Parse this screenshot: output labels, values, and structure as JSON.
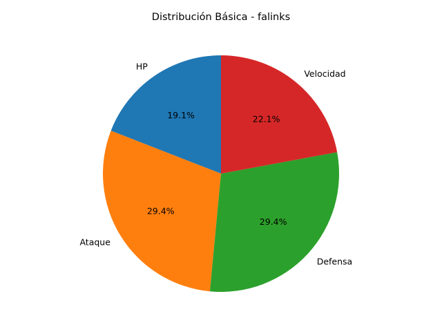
{
  "chart_data": {
    "type": "pie",
    "title": "Distribución Básica - falinks",
    "slices": [
      {
        "label": "HP",
        "value": 19.1,
        "pct_label": "19.1%",
        "color": "#1f77b4"
      },
      {
        "label": "Ataque",
        "value": 29.4,
        "pct_label": "29.4%",
        "color": "#ff7f0e"
      },
      {
        "label": "Defensa",
        "value": 29.4,
        "pct_label": "29.4%",
        "color": "#2ca02c"
      },
      {
        "label": "Velocidad",
        "value": 22.1,
        "pct_label": "22.1%",
        "color": "#d62728"
      }
    ],
    "start_angle_deg": 90,
    "direction": "counterclockwise"
  }
}
